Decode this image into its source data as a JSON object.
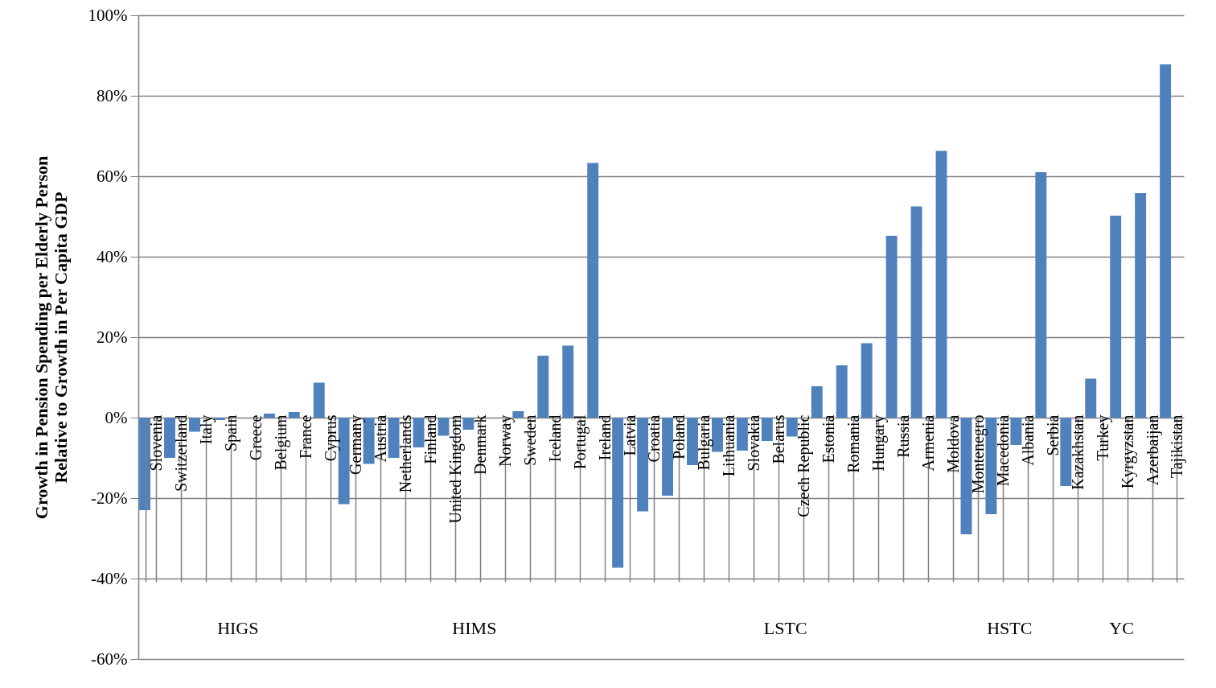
{
  "chart_data": {
    "type": "bar",
    "ylabel": "Growth in Pension Spending per Elderly Person Relative to Growth in Per Capita GDP",
    "categories": [
      "Slovenia",
      "Switzerland",
      "Italy",
      "Spain",
      "Greece",
      "Belgium",
      "France",
      "Cyprus",
      "Germany",
      "Austria",
      "Netherlands",
      "Finland",
      "United Kingdom",
      "Denmark",
      "Norway",
      "Sweden",
      "Iceland",
      "Portugal",
      "Ireland",
      "Latvia",
      "Croatia",
      "Poland",
      "Bulgaria",
      "Lithuania",
      "Slovakia",
      "Belarus",
      "Czech Republic",
      "Estonia",
      "Romania",
      "Hungary",
      "Russia",
      "Armenia",
      "Moldova",
      "Montenegro",
      "Macedonia",
      "Albania",
      "Serbia",
      "Kazakhstan",
      "Turkey",
      "Kyrgyzstan",
      "Azerbaijan",
      "Tajikistan"
    ],
    "values": [
      -23,
      -10,
      -3.5,
      -0.6,
      0,
      1,
      1.4,
      8.7,
      -21.5,
      -11.5,
      -10,
      -7.4,
      -4.5,
      -3,
      0,
      1.6,
      15.4,
      17.9,
      63.3,
      -37.3,
      -23.3,
      -19.4,
      -11.8,
      -8.5,
      -8.2,
      -5.8,
      -4.7,
      7.8,
      13,
      18.5,
      45.2,
      52.5,
      66.3,
      -29,
      -24,
      -6.8,
      61,
      -17,
      9.7,
      50.2,
      55.8,
      87.8
    ],
    "color": "#4f81bd",
    "ylim": [
      -60,
      100
    ],
    "yticks": [
      {
        "value": -60,
        "label": "-60%"
      },
      {
        "value": -40,
        "label": "-40%"
      },
      {
        "value": -20,
        "label": "-20%"
      },
      {
        "value": 0,
        "label": "0%"
      },
      {
        "value": 20,
        "label": "20%"
      },
      {
        "value": 40,
        "label": "40%"
      },
      {
        "value": 60,
        "label": "60%"
      },
      {
        "value": 80,
        "label": "80%"
      },
      {
        "value": 100,
        "label": "100%"
      }
    ],
    "grid": "y",
    "annotations": [
      "HIGS",
      "HIMS",
      "LSTC",
      "HSTC",
      "YC"
    ]
  }
}
